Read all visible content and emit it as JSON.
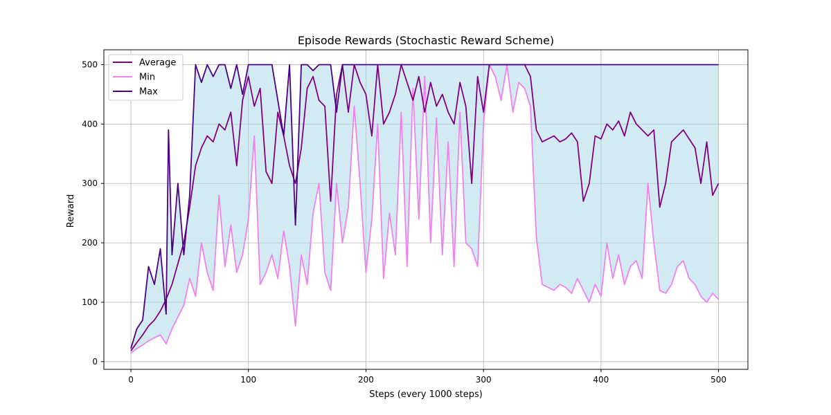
{
  "chart_data": {
    "type": "line",
    "title": "Episode Rewards (Stochastic Reward Scheme)",
    "xlabel": "Steps (every 1000 steps)",
    "ylabel": "Reward",
    "xlim": [
      -23,
      525
    ],
    "ylim": [
      -13,
      525
    ],
    "xticks": [
      0,
      100,
      200,
      300,
      400,
      500
    ],
    "yticks": [
      0,
      100,
      200,
      300,
      400,
      500
    ],
    "grid": true,
    "legend_position": "top-left",
    "fill_between": {
      "lower": "Min",
      "upper": "Max",
      "color": "#add8e6"
    },
    "series": [
      {
        "name": "Average",
        "color": "#800080",
        "x": [
          0,
          5,
          10,
          15,
          20,
          25,
          30,
          35,
          40,
          45,
          50,
          55,
          60,
          65,
          70,
          75,
          80,
          85,
          90,
          95,
          100,
          105,
          110,
          115,
          120,
          125,
          130,
          135,
          140,
          145,
          150,
          155,
          160,
          165,
          170,
          175,
          180,
          185,
          190,
          195,
          200,
          205,
          210,
          215,
          220,
          225,
          230,
          235,
          240,
          245,
          250,
          255,
          260,
          265,
          270,
          275,
          280,
          285,
          290,
          295,
          300,
          305,
          310,
          315,
          320,
          325,
          330,
          335,
          340,
          345,
          350,
          355,
          360,
          365,
          370,
          375,
          380,
          385,
          390,
          395,
          400,
          405,
          410,
          415,
          420,
          425,
          430,
          435,
          440,
          445,
          450,
          455,
          460,
          465,
          470,
          475,
          480,
          485,
          490,
          495,
          500
        ],
        "values": [
          18,
          32,
          45,
          60,
          70,
          85,
          105,
          130,
          165,
          200,
          260,
          330,
          360,
          380,
          370,
          400,
          390,
          420,
          330,
          440,
          480,
          430,
          460,
          320,
          300,
          420,
          380,
          330,
          300,
          360,
          460,
          480,
          440,
          430,
          270,
          450,
          500,
          420,
          500,
          470,
          450,
          380,
          500,
          400,
          420,
          450,
          500,
          470,
          440,
          480,
          420,
          470,
          430,
          450,
          420,
          400,
          470,
          430,
          300,
          480,
          420,
          500,
          500,
          500,
          500,
          500,
          500,
          500,
          480,
          390,
          370,
          375,
          380,
          370,
          375,
          385,
          370,
          270,
          300,
          380,
          375,
          400,
          390,
          405,
          380,
          420,
          400,
          390,
          380,
          390,
          260,
          300,
          370,
          380,
          390,
          375,
          360,
          300,
          370,
          280,
          300
        ]
      },
      {
        "name": "Min",
        "color": "#ee82ee",
        "x": [
          0,
          5,
          10,
          15,
          20,
          25,
          30,
          35,
          40,
          45,
          50,
          55,
          60,
          65,
          70,
          75,
          80,
          85,
          90,
          95,
          100,
          105,
          110,
          115,
          120,
          125,
          130,
          135,
          140,
          145,
          150,
          155,
          160,
          165,
          170,
          175,
          180,
          185,
          190,
          195,
          200,
          205,
          210,
          215,
          220,
          225,
          230,
          235,
          240,
          245,
          250,
          255,
          260,
          265,
          270,
          275,
          280,
          285,
          290,
          295,
          300,
          305,
          310,
          315,
          320,
          325,
          330,
          335,
          340,
          345,
          350,
          355,
          360,
          365,
          370,
          375,
          380,
          385,
          390,
          395,
          400,
          405,
          410,
          415,
          420,
          425,
          430,
          435,
          440,
          445,
          450,
          455,
          460,
          465,
          470,
          475,
          480,
          485,
          490,
          495,
          500
        ],
        "values": [
          14,
          22,
          28,
          35,
          40,
          45,
          30,
          55,
          75,
          95,
          140,
          110,
          200,
          150,
          120,
          280,
          160,
          230,
          150,
          180,
          240,
          380,
          130,
          150,
          180,
          140,
          220,
          160,
          60,
          180,
          130,
          250,
          300,
          150,
          120,
          300,
          200,
          260,
          430,
          300,
          150,
          240,
          400,
          140,
          250,
          180,
          420,
          160,
          460,
          240,
          480,
          200,
          410,
          180,
          370,
          160,
          420,
          200,
          190,
          160,
          400,
          500,
          480,
          440,
          500,
          420,
          470,
          460,
          430,
          210,
          130,
          125,
          120,
          130,
          125,
          115,
          140,
          120,
          100,
          130,
          110,
          200,
          140,
          180,
          130,
          160,
          170,
          140,
          300,
          200,
          120,
          115,
          130,
          160,
          170,
          140,
          130,
          110,
          100,
          115,
          105
        ]
      },
      {
        "name": "Max",
        "color": "#4b0082",
        "x": [
          0,
          5,
          10,
          15,
          20,
          25,
          30,
          32,
          35,
          40,
          45,
          50,
          55,
          60,
          65,
          70,
          75,
          80,
          85,
          90,
          95,
          100,
          110,
          120,
          130,
          135,
          140,
          145,
          150,
          155,
          160,
          170,
          175,
          180,
          200,
          210,
          215,
          220,
          250,
          300,
          350,
          400,
          450,
          500
        ],
        "values": [
          22,
          55,
          70,
          160,
          130,
          190,
          80,
          390,
          180,
          300,
          180,
          280,
          500,
          470,
          500,
          480,
          500,
          500,
          460,
          500,
          450,
          500,
          500,
          500,
          380,
          500,
          230,
          500,
          500,
          490,
          500,
          500,
          420,
          500,
          500,
          500,
          500,
          500,
          500,
          500,
          500,
          500,
          500,
          500
        ]
      }
    ]
  }
}
